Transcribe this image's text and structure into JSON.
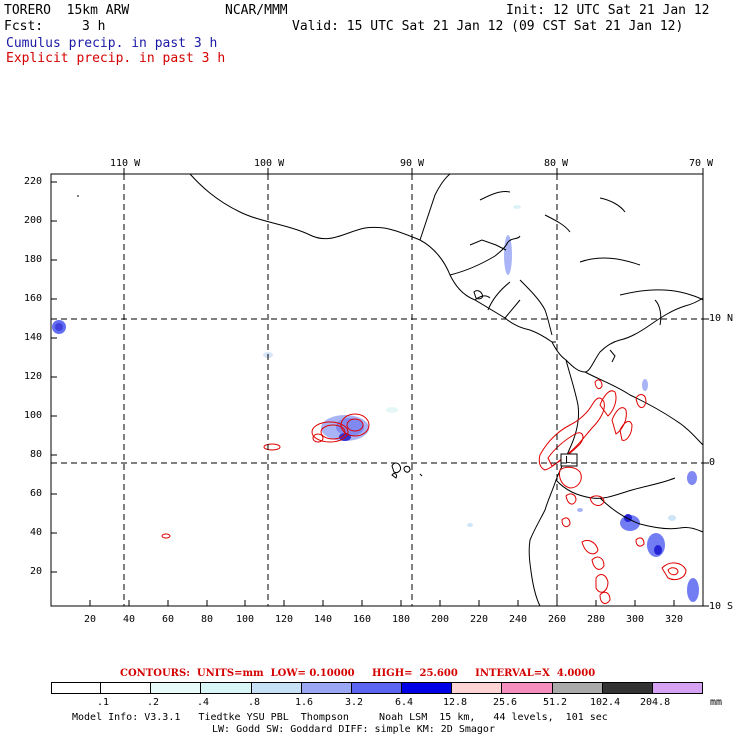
{
  "header": {
    "model": "TORERO  15km ARW",
    "org": "NCAR/MMM",
    "init": "Init: 12 UTC Sat 21 Jan 12",
    "fcst_label": "Fcst:",
    "fcst_value": "3 h",
    "valid": "Valid: 15 UTC Sat 21 Jan 12 (09 CST Sat 21 Jan 12)",
    "cumulus": "Cumulus precip. in past 3 h",
    "explicit": "Explicit precip. in past 3 h"
  },
  "map": {
    "lon_labels": [
      "110 W",
      "100 W",
      "90 W",
      "80 W",
      "70 W"
    ],
    "lat_labels": [
      "10 N",
      "0",
      "10 S"
    ],
    "y_ticks": [
      "220",
      "200",
      "180",
      "160",
      "140",
      "120",
      "100",
      "80",
      "60",
      "40",
      "20"
    ],
    "x_ticks": [
      "20",
      "40",
      "60",
      "80",
      "100",
      "120",
      "140",
      "160",
      "180",
      "200",
      "220",
      "240",
      "260",
      "280",
      "300",
      "320"
    ],
    "low_marker": "L",
    "colors": {
      "coast": "#000000",
      "cumulus": "#2a3cff",
      "explicit": "#e00000"
    }
  },
  "legend": {
    "contours_line": "CONTOURS:  UNITS=mm  LOW= 0.10000     HIGH=  25.600     INTERVAL=X  4.0000",
    "values": [
      ".1",
      ".2",
      ".4",
      ".8",
      "1.6",
      "3.2",
      "6.4",
      "12.8",
      "25.6",
      "51.2",
      "102.4",
      "204.8"
    ],
    "unit": "mm",
    "colors": [
      "#ffffff",
      "#ffffff",
      "#e8fbfb",
      "#d8f6f6",
      "#c6e0f6",
      "#9aa8f4",
      "#5a66f2",
      "#0000e6",
      "#ffd4d4",
      "#f58fbf",
      "#aaaaaa",
      "#333333",
      "#d6a2f4"
    ]
  },
  "footer": {
    "line1": "Model Info: V3.3.1   Tiedtke YSU PBL  Thompson     Noah LSM  15 km,   44 levels,  101 sec",
    "line2": "LW: Godd SW: Goddard DIFF: simple KM: 2D Smagor"
  }
}
